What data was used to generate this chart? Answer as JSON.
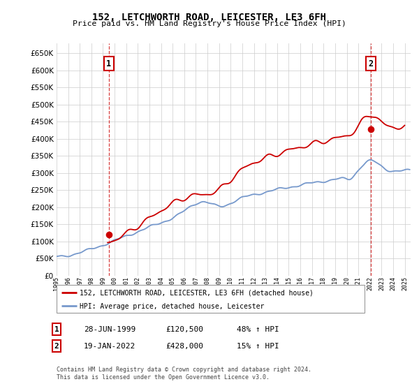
{
  "title": "152, LETCHWORTH ROAD, LEICESTER, LE3 6FH",
  "subtitle": "Price paid vs. HM Land Registry's House Price Index (HPI)",
  "property_label": "152, LETCHWORTH ROAD, LEICESTER, LE3 6FH (detached house)",
  "hpi_label": "HPI: Average price, detached house, Leicester",
  "point1_price": 120500,
  "point1_year": 1999.49,
  "point2_price": 428000,
  "point2_year": 2022.05,
  "property_color": "#cc0000",
  "hpi_color": "#7799cc",
  "ylim_min": 0,
  "ylim_max": 680000,
  "ytick_step": 50000,
  "xmin": 1995,
  "xmax": 2025.5,
  "footer": "Contains HM Land Registry data © Crown copyright and database right 2024.\nThis data is licensed under the Open Government Licence v3.0.",
  "background_color": "#ffffff",
  "grid_color": "#cccccc"
}
